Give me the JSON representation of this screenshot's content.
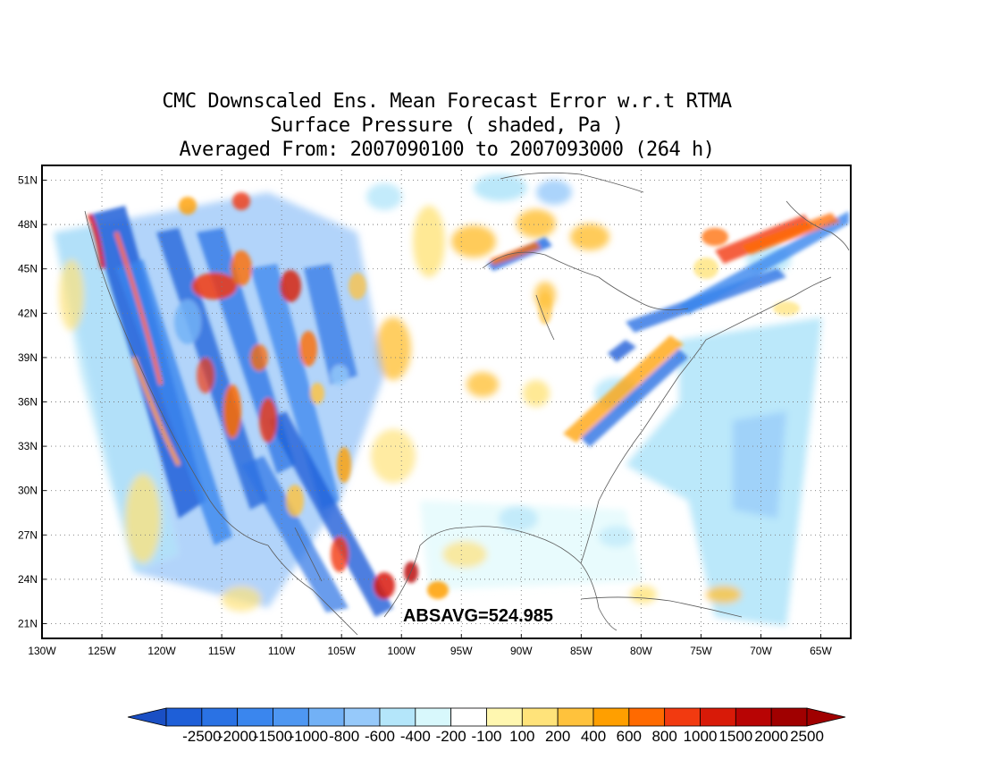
{
  "title": {
    "line1": "CMC Downscaled Ens. Mean Forecast Error w.r.t RTMA",
    "line2": "Surface Pressure ( shaded, Pa )",
    "line3": "Averaged From: 2007090100 to 2007093000 (264 h)"
  },
  "annotation": "ABSAVG=524.985",
  "axes": {
    "lat_labels": [
      "51N",
      "48N",
      "45N",
      "42N",
      "39N",
      "36N",
      "33N",
      "30N",
      "27N",
      "24N",
      "21N"
    ],
    "lon_labels": [
      "130W",
      "125W",
      "120W",
      "115W",
      "110W",
      "105W",
      "100W",
      "95W",
      "90W",
      "85W",
      "80W",
      "75W",
      "70W",
      "65W"
    ],
    "lat_range": [
      20,
      52
    ],
    "lon_range": [
      -130,
      -62.5
    ],
    "gridlines": true
  },
  "colorbar": {
    "labels": [
      "-2500",
      "-2000",
      "-1500",
      "-1000",
      "-800",
      "-600",
      "-400",
      "-200",
      "-100",
      "100",
      "200",
      "400",
      "600",
      "800",
      "1000",
      "1500",
      "2000",
      "2500"
    ],
    "colors": [
      "#1e5fd8",
      "#2a72e4",
      "#3a86ee",
      "#4e97f2",
      "#72b1f6",
      "#96c9fa",
      "#b4e6fa",
      "#d8f8fc",
      "#ffffff",
      "#fff7b0",
      "#ffe37a",
      "#ffc23c",
      "#ff9f00",
      "#ff6a00",
      "#f23a10",
      "#d81a08",
      "#b80404",
      "#a00000"
    ],
    "low_arrow_color": "#1a4fc4",
    "high_arrow_color": "#a00000"
  },
  "field_regions": [
    {
      "name": "western-mountains",
      "sign": "mixed",
      "intensity": "high"
    },
    {
      "name": "great-plains",
      "sign": "mixed",
      "intensity": "low"
    },
    {
      "name": "appalachians",
      "sign": "mixed",
      "intensity": "high"
    },
    {
      "name": "atlantic-ocean",
      "sign": "negative",
      "intensity": "low"
    }
  ]
}
